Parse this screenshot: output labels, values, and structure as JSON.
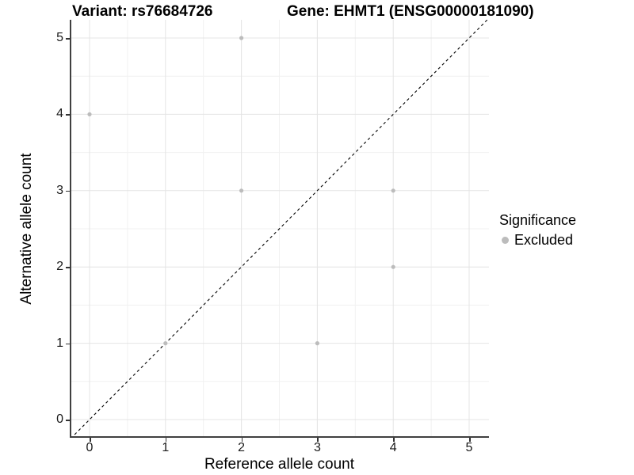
{
  "header": {
    "variant_title": "Variant: rs76684726",
    "gene_title": "Gene: EHMT1 (ENSG00000181090)"
  },
  "chart_data": {
    "type": "scatter",
    "title_left": "Variant: rs76684726",
    "title_right": "Gene: EHMT1 (ENSG00000181090)",
    "xlabel": "Reference allele count",
    "ylabel": "Alternative allele count",
    "xlim": [
      -0.26,
      5.26
    ],
    "ylim": [
      -0.24,
      5.24
    ],
    "x_ticks": [
      "0",
      "1",
      "2",
      "3",
      "4",
      "5"
    ],
    "x_tick_values": [
      0,
      1,
      2,
      3,
      4,
      5
    ],
    "y_ticks": [
      "0",
      "1",
      "2",
      "3",
      "4",
      "5"
    ],
    "y_tick_values": [
      0,
      1,
      2,
      3,
      4,
      5
    ],
    "minor_tick_values": [
      0.5,
      1.5,
      2.5,
      3.5,
      4.5
    ],
    "grid": "major and minor gridlines on white background",
    "identity_line": {
      "equation": "y = x",
      "style": "dashed",
      "color": "#000000"
    },
    "series": [
      {
        "name": "Excluded",
        "color": "#bcbcbc",
        "points": [
          [
            0,
            4
          ],
          [
            1,
            1
          ],
          [
            2,
            3
          ],
          [
            2,
            5
          ],
          [
            3,
            1
          ],
          [
            4,
            2
          ],
          [
            4,
            3
          ]
        ]
      }
    ],
    "legend": {
      "title": "Significance",
      "position": "right",
      "entries": [
        {
          "label": "Excluded",
          "color": "#bcbcbc"
        }
      ]
    }
  },
  "colors": {
    "background": "#ffffff",
    "major_grid": "#e4e4e4",
    "minor_grid": "#f1f1f1",
    "axis_line": "#404040",
    "tick_mark": "#333333",
    "point": "#bcbcbc",
    "dashed_line": "#000000"
  }
}
